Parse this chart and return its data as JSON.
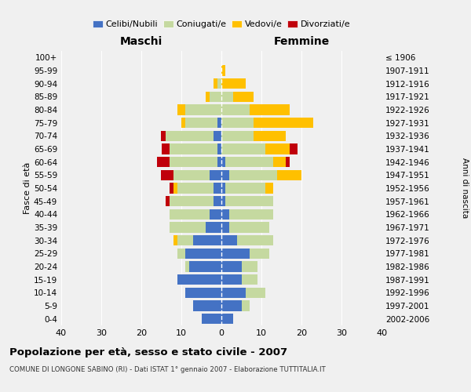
{
  "age_groups": [
    "0-4",
    "5-9",
    "10-14",
    "15-19",
    "20-24",
    "25-29",
    "30-34",
    "35-39",
    "40-44",
    "45-49",
    "50-54",
    "55-59",
    "60-64",
    "65-69",
    "70-74",
    "75-79",
    "80-84",
    "85-89",
    "90-94",
    "95-99",
    "100+"
  ],
  "birth_years": [
    "2002-2006",
    "1997-2001",
    "1992-1996",
    "1987-1991",
    "1982-1986",
    "1977-1981",
    "1972-1976",
    "1967-1971",
    "1962-1966",
    "1957-1961",
    "1952-1956",
    "1947-1951",
    "1942-1946",
    "1937-1941",
    "1932-1936",
    "1927-1931",
    "1922-1926",
    "1917-1921",
    "1912-1916",
    "1907-1911",
    "≤ 1906"
  ],
  "maschi": {
    "celibe": [
      5,
      7,
      9,
      11,
      8,
      9,
      7,
      4,
      3,
      2,
      2,
      3,
      1,
      1,
      2,
      1,
      0,
      0,
      0,
      0,
      0
    ],
    "coniugato": [
      0,
      0,
      0,
      0,
      1,
      2,
      4,
      9,
      10,
      11,
      9,
      9,
      12,
      12,
      12,
      8,
      9,
      3,
      1,
      0,
      0
    ],
    "vedovo": [
      0,
      0,
      0,
      0,
      0,
      0,
      1,
      0,
      0,
      0,
      1,
      0,
      0,
      0,
      0,
      1,
      2,
      1,
      1,
      0,
      0
    ],
    "divorziato": [
      0,
      0,
      0,
      0,
      0,
      0,
      0,
      0,
      0,
      1,
      1,
      3,
      3,
      2,
      1,
      0,
      0,
      0,
      0,
      0,
      0
    ]
  },
  "femmine": {
    "nubile": [
      3,
      5,
      6,
      5,
      5,
      7,
      4,
      2,
      2,
      1,
      1,
      2,
      1,
      0,
      0,
      0,
      0,
      0,
      0,
      0,
      0
    ],
    "coniugata": [
      0,
      2,
      5,
      4,
      4,
      5,
      9,
      10,
      11,
      12,
      10,
      12,
      12,
      11,
      8,
      8,
      7,
      3,
      0,
      0,
      0
    ],
    "vedova": [
      0,
      0,
      0,
      0,
      0,
      0,
      0,
      0,
      0,
      0,
      2,
      6,
      3,
      6,
      8,
      15,
      10,
      5,
      6,
      1,
      0
    ],
    "divorziata": [
      0,
      0,
      0,
      0,
      0,
      0,
      0,
      0,
      0,
      0,
      0,
      0,
      1,
      2,
      0,
      0,
      0,
      0,
      0,
      0,
      0
    ]
  },
  "colors": {
    "celibe": "#4472c4",
    "coniugato": "#c5d9a0",
    "vedovo": "#ffc000",
    "divorziato": "#c0000b"
  },
  "title": "Popolazione per età, sesso e stato civile - 2007",
  "subtitle": "COMUNE DI LONGONE SABINO (RI) - Dati ISTAT 1° gennaio 2007 - Elaborazione TUTTITALIA.IT",
  "xlabel_left": "Maschi",
  "xlabel_right": "Femmine",
  "ylabel_left": "Fasce di età",
  "ylabel_right": "Anni di nascita",
  "xlim": 40,
  "bg_color": "#f0f0f0",
  "legend_labels": [
    "Celibi/Nubili",
    "Coniugati/e",
    "Vedovi/e",
    "Divorziati/e"
  ]
}
